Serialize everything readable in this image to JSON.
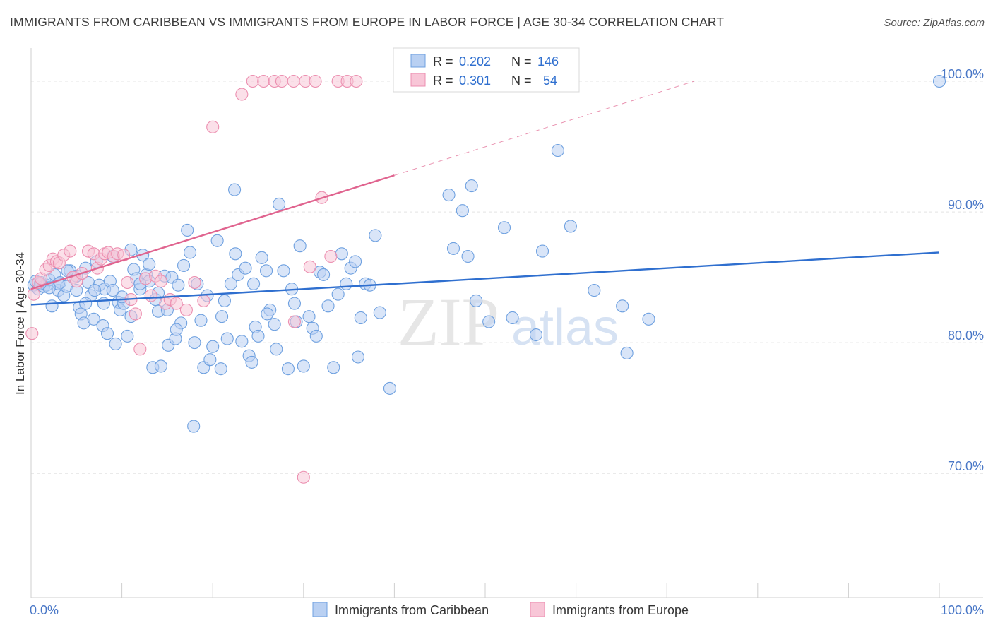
{
  "title": "IMMIGRANTS FROM CARIBBEAN VS IMMIGRANTS FROM EUROPE IN LABOR FORCE | AGE 30-34 CORRELATION CHART",
  "source": "Source: ZipAtlas.com",
  "colors": {
    "blue": "#6fa1e0",
    "blue_fill": "#b9d0f2",
    "blue_line": "#2f6fcf",
    "pink": "#ec8fb0",
    "pink_fill": "#f8c6d7",
    "pink_line": "#e0648f",
    "axis_label": "#4a78c7"
  },
  "watermark": {
    "zip": "ZIP",
    "atlas": "atlas"
  },
  "legend_top": [
    {
      "swatch": "blue",
      "r_label": "R =",
      "r_value": "0.202",
      "n_label": "N =",
      "n_value": "146"
    },
    {
      "swatch": "pink",
      "r_label": "R =",
      "r_value": "0.301",
      "n_label": "N =",
      "n_value": "54"
    }
  ],
  "chart_data": {
    "type": "scatter",
    "ylabel": "In Labor Force | Age 30-34",
    "xlim": [
      0,
      100
    ],
    "ylim": [
      60.5,
      102
    ],
    "x_tick_labels": [
      {
        "value": 0,
        "label": "0.0%"
      },
      {
        "value": 100,
        "label": "100.0%"
      }
    ],
    "y_tick_labels": [
      {
        "value": 100,
        "label": "100.0%"
      },
      {
        "value": 90,
        "label": "90.0%"
      },
      {
        "value": 80,
        "label": "80.0%"
      },
      {
        "value": 70,
        "label": "70.0%"
      }
    ],
    "grid": true,
    "legend_position": "bottom",
    "series": [
      {
        "name": "Immigrants from Caribbean",
        "color": "blue",
        "trend": {
          "x0": 0,
          "y0": 82.9,
          "x1": 100,
          "y1": 86.9,
          "dashed_from": null
        },
        "points": [
          [
            0.3,
            84.4
          ],
          [
            0.5,
            84.7
          ],
          [
            0.8,
            84.1
          ],
          [
            1.1,
            84.6
          ],
          [
            1.4,
            84.3
          ],
          [
            1.7,
            84.4
          ],
          [
            2.0,
            84.8
          ],
          [
            2.3,
            82.8
          ],
          [
            2.6,
            85.2
          ],
          [
            3.0,
            84.0
          ],
          [
            3.2,
            84.6
          ],
          [
            3.6,
            83.6
          ],
          [
            3.9,
            84.3
          ],
          [
            4.3,
            85.5
          ],
          [
            4.8,
            85.0
          ],
          [
            5.0,
            85.1
          ],
          [
            5.3,
            82.7
          ],
          [
            5.5,
            82.2
          ],
          [
            5.8,
            81.5
          ],
          [
            6.0,
            85.7
          ],
          [
            6.3,
            84.6
          ],
          [
            6.6,
            83.6
          ],
          [
            6.9,
            81.8
          ],
          [
            7.2,
            86.2
          ],
          [
            7.5,
            84.4
          ],
          [
            7.9,
            81.3
          ],
          [
            8.1,
            84.1
          ],
          [
            8.4,
            80.7
          ],
          [
            8.7,
            84.7
          ],
          [
            9.0,
            86.6
          ],
          [
            9.3,
            79.9
          ],
          [
            9.6,
            83.1
          ],
          [
            9.8,
            82.5
          ],
          [
            10.2,
            83.0
          ],
          [
            10.6,
            80.5
          ],
          [
            11.0,
            87.1
          ],
          [
            11.3,
            85.6
          ],
          [
            11.6,
            84.9
          ],
          [
            12.0,
            84.1
          ],
          [
            12.3,
            86.7
          ],
          [
            12.7,
            85.2
          ],
          [
            13.0,
            84.7
          ],
          [
            13.4,
            78.1
          ],
          [
            13.7,
            83.3
          ],
          [
            14.0,
            82.4
          ],
          [
            14.3,
            78.2
          ],
          [
            14.7,
            85.1
          ],
          [
            15.1,
            79.8
          ],
          [
            15.5,
            85.0
          ],
          [
            15.9,
            80.3
          ],
          [
            16.2,
            84.4
          ],
          [
            16.5,
            81.5
          ],
          [
            16.8,
            85.9
          ],
          [
            17.2,
            88.6
          ],
          [
            17.5,
            86.9
          ],
          [
            17.9,
            73.6
          ],
          [
            18.3,
            84.5
          ],
          [
            18.7,
            81.7
          ],
          [
            19.0,
            78.1
          ],
          [
            19.4,
            83.6
          ],
          [
            19.7,
            78.7
          ],
          [
            20.0,
            79.7
          ],
          [
            20.5,
            87.8
          ],
          [
            20.9,
            78.0
          ],
          [
            21.3,
            83.2
          ],
          [
            21.6,
            80.3
          ],
          [
            22.0,
            84.5
          ],
          [
            22.4,
            91.7
          ],
          [
            22.8,
            85.2
          ],
          [
            23.2,
            80.1
          ],
          [
            23.6,
            85.7
          ],
          [
            24.0,
            79.0
          ],
          [
            24.3,
            78.5
          ],
          [
            24.7,
            81.2
          ],
          [
            25.0,
            80.5
          ],
          [
            25.4,
            86.5
          ],
          [
            25.9,
            85.5
          ],
          [
            26.3,
            82.5
          ],
          [
            26.8,
            81.4
          ],
          [
            27.3,
            90.6
          ],
          [
            27.8,
            85.5
          ],
          [
            28.3,
            78.0
          ],
          [
            28.7,
            84.1
          ],
          [
            29.2,
            81.6
          ],
          [
            29.6,
            87.4
          ],
          [
            30.0,
            78.2
          ],
          [
            30.6,
            82.0
          ],
          [
            31.0,
            81.1
          ],
          [
            31.4,
            80.5
          ],
          [
            31.8,
            85.4
          ],
          [
            32.2,
            85.2
          ],
          [
            32.7,
            82.8
          ],
          [
            33.3,
            78.1
          ],
          [
            33.8,
            83.7
          ],
          [
            34.2,
            86.8
          ],
          [
            34.7,
            84.5
          ],
          [
            35.2,
            85.7
          ],
          [
            35.7,
            86.2
          ],
          [
            36.0,
            78.9
          ],
          [
            36.3,
            81.9
          ],
          [
            36.8,
            84.5
          ],
          [
            37.3,
            84.4
          ],
          [
            37.9,
            88.2
          ],
          [
            38.4,
            82.3
          ],
          [
            39.5,
            76.5
          ],
          [
            46.0,
            91.3
          ],
          [
            46.5,
            87.2
          ],
          [
            47.5,
            90.1
          ],
          [
            48.1,
            86.6
          ],
          [
            49.0,
            83.2
          ],
          [
            50.4,
            81.6
          ],
          [
            52.1,
            88.8
          ],
          [
            53.0,
            81.9
          ],
          [
            55.6,
            80.6
          ],
          [
            56.3,
            87.0
          ],
          [
            58.0,
            94.7
          ],
          [
            59.4,
            88.9
          ],
          [
            62.0,
            84.0
          ],
          [
            65.1,
            82.8
          ],
          [
            65.6,
            79.2
          ],
          [
            68.0,
            81.8
          ],
          [
            100.0,
            100.0
          ],
          [
            48.5,
            92.0
          ],
          [
            29.0,
            83.0
          ],
          [
            27.0,
            79.5
          ],
          [
            26.0,
            82.2
          ],
          [
            24.5,
            84.5
          ],
          [
            22.5,
            86.8
          ],
          [
            21.0,
            82.0
          ],
          [
            18.0,
            80.0
          ],
          [
            16.0,
            81.0
          ],
          [
            15.0,
            82.5
          ],
          [
            14.0,
            83.8
          ],
          [
            13.0,
            86.0
          ],
          [
            12.0,
            84.5
          ],
          [
            11.0,
            82.0
          ],
          [
            10.0,
            83.5
          ],
          [
            9.0,
            84.0
          ],
          [
            8.0,
            83.0
          ],
          [
            7.0,
            84.0
          ],
          [
            6.0,
            83.0
          ],
          [
            5.0,
            84.0
          ],
          [
            4.0,
            85.5
          ],
          [
            3.0,
            84.5
          ],
          [
            2.0,
            84.2
          ],
          [
            1.0,
            84.5
          ]
        ]
      },
      {
        "name": "Immigrants from Europe",
        "color": "pink",
        "trend": {
          "x0": 0,
          "y0": 84.1,
          "x1": 40,
          "y1": 92.8,
          "dashed_from": 40,
          "x_end": 73,
          "y_end": 100
        },
        "points": [
          [
            0.1,
            80.7
          ],
          [
            0.3,
            83.7
          ],
          [
            0.8,
            84.6
          ],
          [
            1.1,
            84.9
          ],
          [
            1.6,
            85.6
          ],
          [
            2.0,
            85.9
          ],
          [
            2.4,
            86.4
          ],
          [
            2.8,
            86.2
          ],
          [
            3.1,
            86.1
          ],
          [
            3.6,
            86.7
          ],
          [
            4.3,
            87.0
          ],
          [
            4.6,
            85.0
          ],
          [
            5.0,
            84.7
          ],
          [
            5.6,
            85.3
          ],
          [
            6.3,
            87.0
          ],
          [
            6.9,
            86.8
          ],
          [
            7.3,
            85.7
          ],
          [
            7.7,
            86.4
          ],
          [
            8.1,
            86.8
          ],
          [
            8.5,
            86.9
          ],
          [
            9.1,
            86.6
          ],
          [
            9.5,
            86.8
          ],
          [
            10.2,
            86.7
          ],
          [
            10.6,
            84.6
          ],
          [
            11.0,
            83.3
          ],
          [
            11.5,
            82.2
          ],
          [
            12.0,
            79.5
          ],
          [
            12.6,
            84.9
          ],
          [
            13.2,
            83.6
          ],
          [
            13.7,
            85.1
          ],
          [
            14.3,
            84.7
          ],
          [
            14.8,
            83.0
          ],
          [
            15.3,
            83.3
          ],
          [
            16.0,
            83.0
          ],
          [
            17.1,
            82.5
          ],
          [
            18.0,
            84.6
          ],
          [
            19.0,
            83.2
          ],
          [
            20.0,
            96.5
          ],
          [
            23.2,
            99.0
          ],
          [
            24.4,
            100.0
          ],
          [
            25.6,
            100.0
          ],
          [
            26.8,
            100.0
          ],
          [
            27.6,
            100.0
          ],
          [
            28.9,
            100.0
          ],
          [
            30.2,
            100.0
          ],
          [
            31.3,
            100.0
          ],
          [
            29.0,
            81.6
          ],
          [
            30.0,
            69.7
          ],
          [
            32.0,
            91.1
          ],
          [
            33.0,
            86.6
          ],
          [
            33.8,
            100.0
          ],
          [
            34.8,
            100.0
          ],
          [
            35.8,
            100.0
          ],
          [
            30.7,
            85.8
          ]
        ]
      }
    ]
  }
}
